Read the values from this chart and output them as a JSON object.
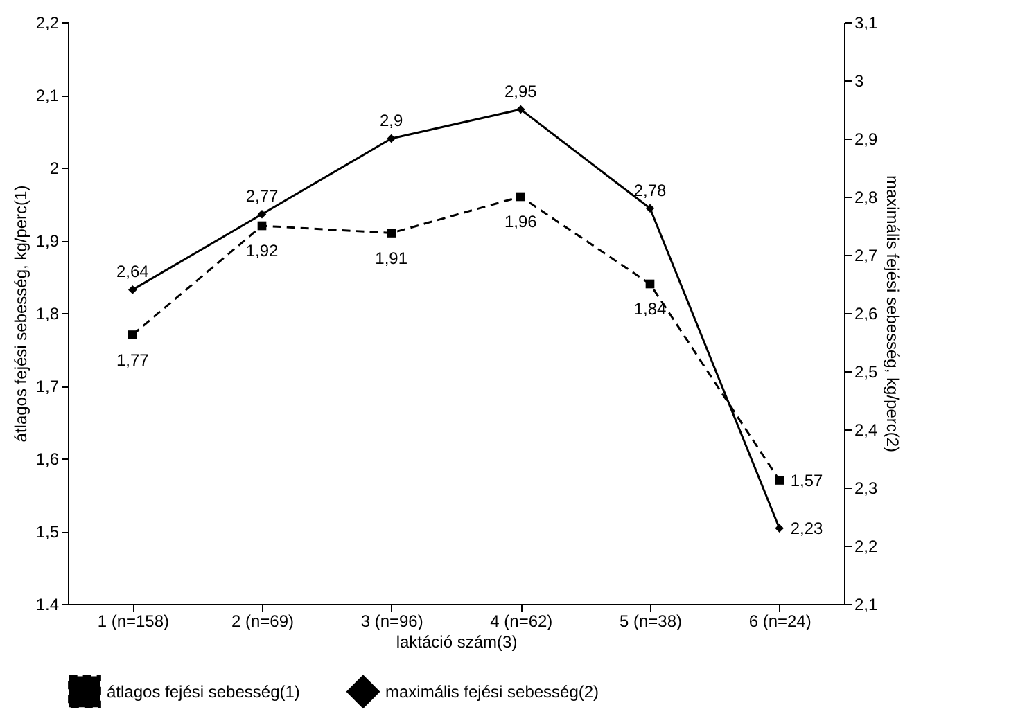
{
  "chart_data": {
    "type": "line",
    "xlabel": "laktáció szám(3)",
    "ylabel": "átlagos fejési sebesség, kg/perc(1)",
    "y2label": "maximális fejési sebesség, kg/perc(2)",
    "categories": [
      "1 (n=158)",
      "2 (n=69)",
      "3 (n=96)",
      "4 (n=62)",
      "5 (n=38)",
      "6 (n=24)"
    ],
    "series": [
      {
        "name": "átlagos fejési sebesség(1)",
        "color": "#000000",
        "values": [
          1.77,
          1.92,
          1.91,
          1.96,
          1.84,
          1.57
        ],
        "value_labels": [
          "1,77",
          "1,92",
          "1,91",
          "1,96",
          "1,84",
          "1,57"
        ],
        "marker": "square",
        "line_style": "dashed"
      },
      {
        "name": "maximális fejési sebesség(2)",
        "color": "#000000",
        "axis": "y2",
        "values": [
          2.64,
          2.77,
          2.9,
          2.95,
          2.78,
          2.23
        ],
        "value_labels": [
          "2,64",
          "2,77",
          "2,9",
          "2,95",
          "2,78",
          "2,23"
        ],
        "marker": "diamond",
        "line_style": "solid"
      }
    ],
    "ylim": [
      1.4,
      2.2
    ],
    "yticks": [
      1.4,
      {
        "value": 1.5,
        "label": "1,5"
      },
      {
        "value": 1.6,
        "label": "1,6"
      },
      {
        "value": 1.7,
        "label": "1,7"
      },
      {
        "value": 1.8,
        "label": "1,8"
      },
      {
        "value": 1.9,
        "label": "1,9"
      },
      2,
      {
        "value": 2.1,
        "label": "2,1"
      },
      {
        "value": 2.2,
        "label": "2,2"
      }
    ],
    "y2lim": [
      2.1,
      3.1
    ],
    "y2ticks": [
      {
        "value": 2.1,
        "label": "2,1"
      },
      {
        "value": 2.2,
        "label": "2,2"
      },
      {
        "value": 2.3,
        "label": "2,3"
      },
      {
        "value": 2.4,
        "label": "2,4"
      },
      {
        "value": 2.5,
        "label": "2,5"
      },
      {
        "value": 2.6,
        "label": "2,6"
      },
      {
        "value": 2.7,
        "label": "2,7"
      },
      {
        "value": 2.8,
        "label": "2,8"
      },
      {
        "value": 2.9,
        "label": "2,9"
      },
      3,
      {
        "value": 3.1,
        "label": "3,1"
      }
    ],
    "legend": "bottom",
    "grid": false
  }
}
